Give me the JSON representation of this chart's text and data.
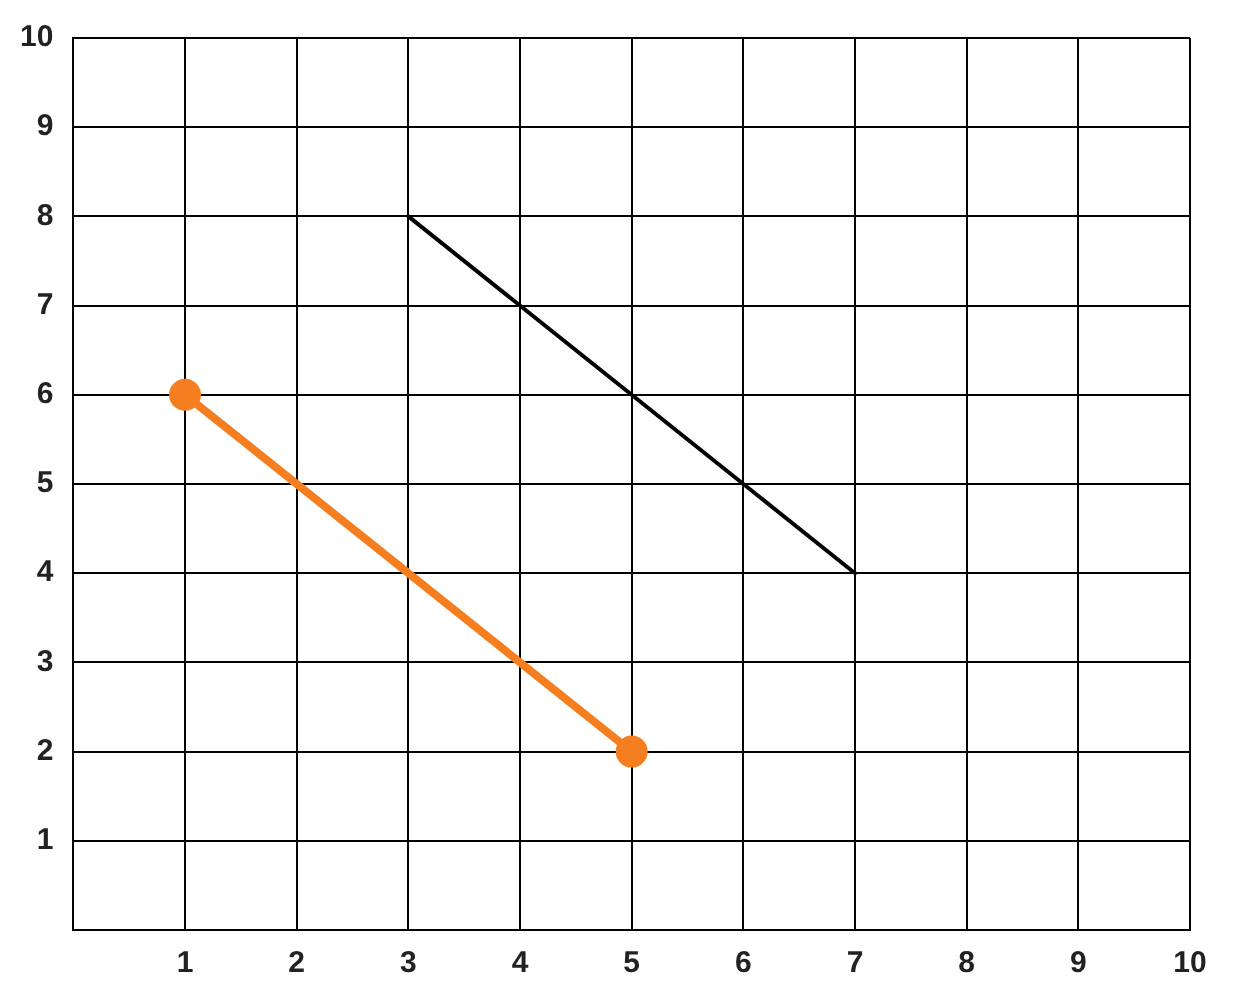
{
  "chart_data": {
    "type": "line",
    "xlim": [
      0,
      10
    ],
    "ylim": [
      0,
      10
    ],
    "xticks": [
      1,
      2,
      3,
      4,
      5,
      6,
      7,
      8,
      9,
      10
    ],
    "yticks": [
      1,
      2,
      3,
      4,
      5,
      6,
      7,
      8,
      9,
      10
    ],
    "grid": true,
    "legend": false,
    "line_style": "solid",
    "series": [
      {
        "color": "#000000",
        "x": [
          3,
          7
        ],
        "values": [
          8,
          4
        ],
        "marker": "none"
      },
      {
        "color": "#f47e20",
        "x": [
          1,
          5
        ],
        "values": [
          6,
          2
        ],
        "marker": "circle"
      }
    ]
  }
}
